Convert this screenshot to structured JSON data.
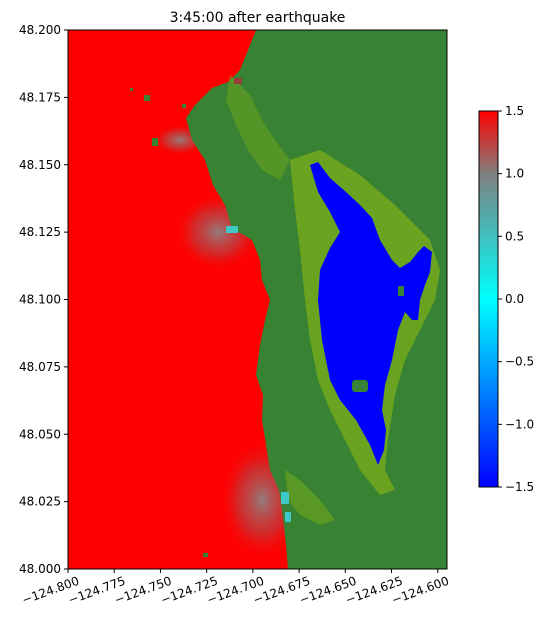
{
  "chart_data": {
    "type": "heatmap",
    "title": "3:45:00 after earthquake",
    "xlim": [
      -124.8,
      -124.595
    ],
    "ylim": [
      48.0,
      48.2
    ],
    "x_ticks": [
      {
        "value": -124.8,
        "label": "−124.800"
      },
      {
        "value": -124.775,
        "label": "−124.775"
      },
      {
        "value": -124.75,
        "label": "−124.750"
      },
      {
        "value": -124.725,
        "label": "−124.725"
      },
      {
        "value": -124.7,
        "label": "−124.700"
      },
      {
        "value": -124.675,
        "label": "−124.675"
      },
      {
        "value": -124.65,
        "label": "−124.650"
      },
      {
        "value": -124.625,
        "label": "−124.625"
      },
      {
        "value": -124.6,
        "label": "−124.600"
      }
    ],
    "y_ticks": [
      {
        "value": 48.0,
        "label": "48.000"
      },
      {
        "value": 48.025,
        "label": "48.025"
      },
      {
        "value": 48.05,
        "label": "48.050"
      },
      {
        "value": 48.075,
        "label": "48.075"
      },
      {
        "value": 48.1,
        "label": "48.100"
      },
      {
        "value": 48.125,
        "label": "48.125"
      },
      {
        "value": 48.15,
        "label": "48.150"
      },
      {
        "value": 48.175,
        "label": "48.175"
      },
      {
        "value": 48.2,
        "label": "48.200"
      }
    ],
    "colorbar": {
      "range": [
        -1.5,
        1.5
      ],
      "ticks": [
        {
          "value": 1.5,
          "label": "1.5"
        },
        {
          "value": 1.0,
          "label": "1.0"
        },
        {
          "value": 0.5,
          "label": "0.5"
        },
        {
          "value": 0.0,
          "label": "0.0"
        },
        {
          "value": -0.5,
          "label": "−0.5"
        },
        {
          "value": -1.0,
          "label": "−1.0"
        },
        {
          "value": -1.5,
          "label": "−1.5"
        }
      ],
      "colors": [
        "#0000ff",
        "#00ffff",
        "#808080",
        "#ff0000"
      ]
    },
    "colors": {
      "ocean_high": "#ff0000",
      "land": "#378233",
      "lowland": "#6fa61d",
      "bay_low": "#0000ff"
    }
  }
}
